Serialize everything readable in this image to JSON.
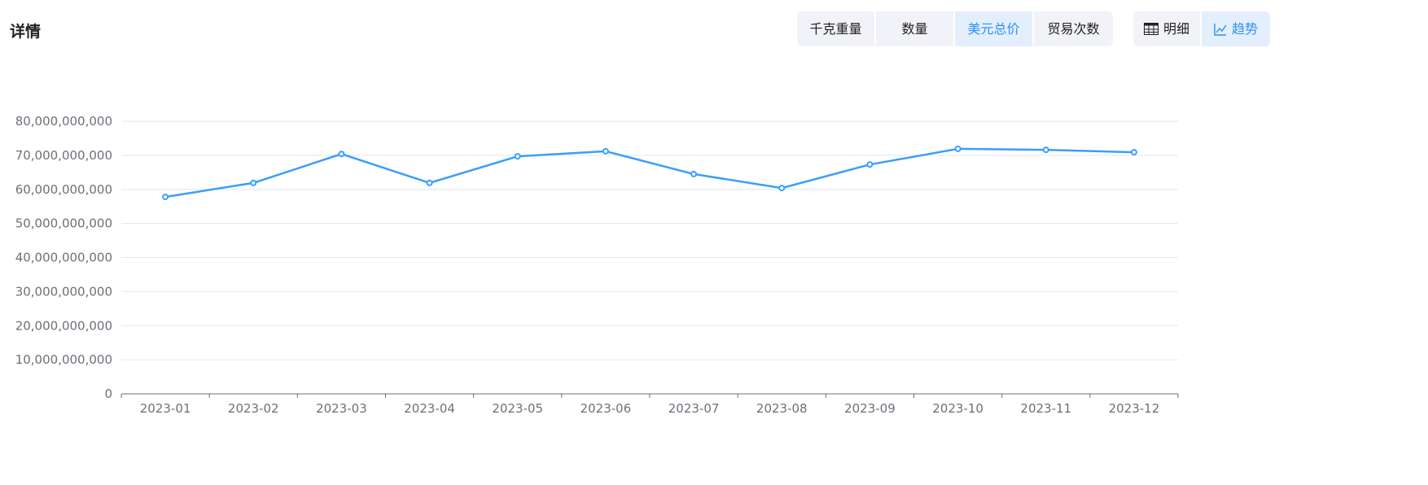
{
  "header": {
    "title": "详情"
  },
  "metric_tabs": [
    {
      "label": "千克重量",
      "active": false
    },
    {
      "label": "数量",
      "active": false
    },
    {
      "label": "美元总价",
      "active": true
    },
    {
      "label": "贸易次数",
      "active": false
    }
  ],
  "view_tabs": [
    {
      "label": "明细",
      "icon": "table-icon",
      "active": false
    },
    {
      "label": "趋势",
      "icon": "line-chart-icon",
      "active": true
    }
  ],
  "colors": {
    "series": "#3a9efb",
    "grid": "#e3e6ef",
    "axis_text": "#6e7079",
    "active_text": "#2f8ff0"
  },
  "chart_data": {
    "type": "line",
    "categories": [
      "2023-01",
      "2023-02",
      "2023-03",
      "2023-04",
      "2023-05",
      "2023-06",
      "2023-07",
      "2023-08",
      "2023-09",
      "2023-10",
      "2023-11",
      "2023-12"
    ],
    "values": [
      57800000000,
      61900000000,
      70400000000,
      61900000000,
      69700000000,
      71200000000,
      64500000000,
      60400000000,
      67300000000,
      71900000000,
      71600000000,
      70900000000
    ],
    "ylim": [
      0,
      80000000000
    ],
    "yticks": [
      "0",
      "10,000,000,000",
      "20,000,000,000",
      "30,000,000,000",
      "40,000,000,000",
      "50,000,000,000",
      "60,000,000,000",
      "70,000,000,000",
      "80,000,000,000"
    ],
    "grid": true,
    "title": "",
    "xlabel": "",
    "ylabel": ""
  }
}
